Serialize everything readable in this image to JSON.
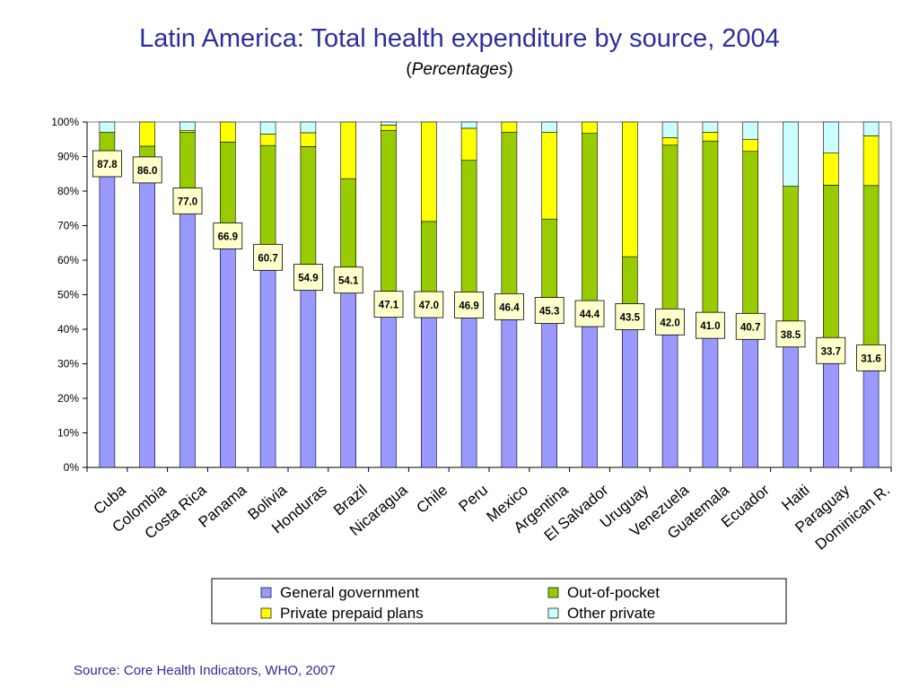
{
  "header": {
    "title": "Latin America: Total health expenditure by source, 2004",
    "subtitle_open": "(",
    "subtitle_italic": "Percentages",
    "subtitle_close": ")"
  },
  "footer": {
    "source": "Source: Core Health Indicators, WHO, 2007"
  },
  "chart_data": {
    "type": "bar",
    "stacked": true,
    "title": "Latin America: Total health expenditure by source, 2004",
    "subtitle": "(Percentages)",
    "categories": [
      "Cuba",
      "Colombia",
      "Costa Rica",
      "Panama",
      "Bolivia",
      "Honduras",
      "Brazil",
      "Nicaragua",
      "Chile",
      "Peru",
      "Mexico",
      "Argentina",
      "El Salvador",
      "Uruguay",
      "Venezuela",
      "Guatemala",
      "Ecuador",
      "Haiti",
      "Paraguay",
      "Dominican R."
    ],
    "series": [
      {
        "name": "General government",
        "color": "#9999ff",
        "values": [
          87.8,
          86.0,
          77.0,
          66.9,
          60.7,
          54.9,
          54.1,
          47.1,
          47.0,
          46.9,
          46.4,
          45.3,
          44.4,
          43.5,
          42.0,
          41.0,
          40.7,
          38.5,
          33.7,
          31.6
        ]
      },
      {
        "name": "Out-of-pocket",
        "color": "#99cc00",
        "values": [
          9.2,
          7.0,
          20.0,
          27.3,
          32.5,
          38.0,
          29.5,
          50.5,
          24.2,
          42.0,
          50.6,
          26.6,
          52.3,
          17.5,
          51.3,
          53.5,
          50.8,
          42.9,
          48.0,
          50.0
        ]
      },
      {
        "name": "Private prepaid plans",
        "color": "#ffff00",
        "values": [
          0.0,
          7.0,
          0.5,
          5.8,
          3.3,
          4.0,
          16.4,
          1.5,
          28.8,
          9.3,
          3.0,
          25.1,
          3.3,
          39.0,
          2.2,
          2.5,
          3.5,
          0.0,
          9.3,
          14.4
        ]
      },
      {
        "name": "Other private",
        "color": "#ccffff",
        "values": [
          3.0,
          0.0,
          2.5,
          0.0,
          3.5,
          3.1,
          0.0,
          0.9,
          0.0,
          1.8,
          0.0,
          3.0,
          0.0,
          0.0,
          4.5,
          3.0,
          5.0,
          18.6,
          9.0,
          4.0
        ]
      }
    ],
    "ylim": [
      0,
      100
    ],
    "yticks": [
      "0%",
      "10%",
      "20%",
      "30%",
      "40%",
      "50%",
      "60%",
      "70%",
      "80%",
      "90%",
      "100%"
    ],
    "data_labels": [
      "87.8",
      "86.0",
      "77.0",
      "66.9",
      "60.7",
      "54.9",
      "54.1",
      "47.1",
      "47.0",
      "46.9",
      "46.4",
      "45.3",
      "44.4",
      "43.5",
      "42.0",
      "41.0",
      "40.7",
      "38.5",
      "33.7",
      "31.6"
    ],
    "legend_position": "bottom",
    "grid": false
  }
}
